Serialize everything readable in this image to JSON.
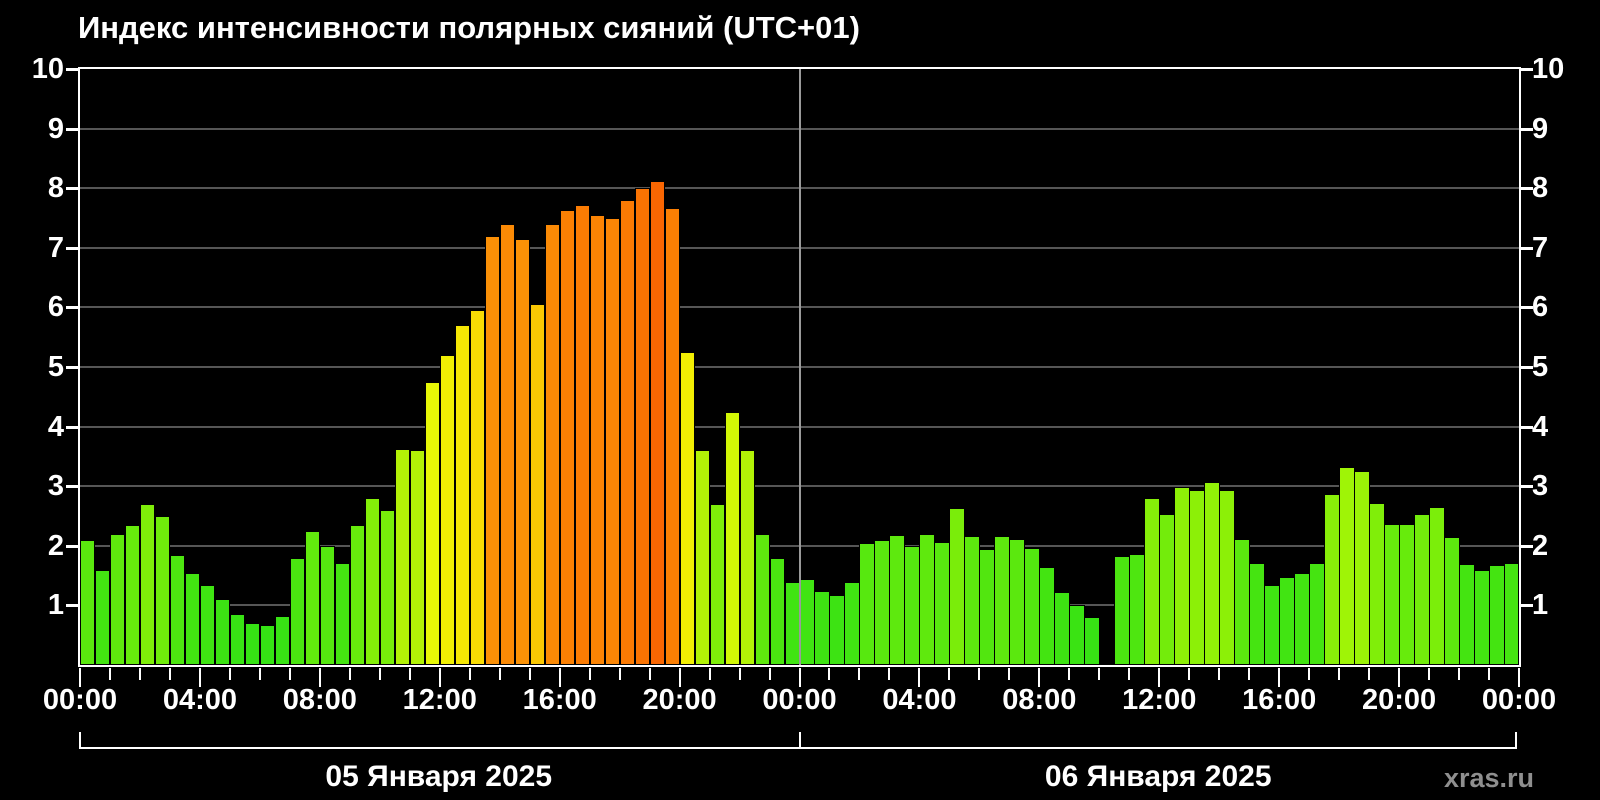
{
  "page": {
    "background": "#000000",
    "title": "Индекс интенсивности полярных сияний (UTC+01)",
    "watermark": "xras.ru"
  },
  "chart_data": {
    "type": "bar",
    "title": "Индекс интенсивности полярных сияний (UTC+01)",
    "xlabel": "",
    "ylabel": "",
    "ylim": [
      0,
      10
    ],
    "grid": "horizontal-gray, vertical divider at day boundary",
    "legend": "none",
    "slot_minutes": 30,
    "y_tick_labels": [
      "10",
      "9",
      "8",
      "7",
      "6",
      "5",
      "4",
      "3",
      "2",
      "1"
    ],
    "x_tick_labels": [
      "00:00",
      "04:00",
      "08:00",
      "12:00",
      "16:00",
      "20:00",
      "00:00",
      "04:00",
      "08:00",
      "12:00",
      "16:00",
      "20:00",
      "00:00"
    ],
    "x_minor_tick_every_hours": 1,
    "x_major_tick_every_hours": 4,
    "days": [
      {
        "label": "05 Января 2025"
      },
      {
        "label": "06 Января 2025"
      }
    ],
    "missing_slot_note": "no data bar for 06 Jan 10:00-10:30 (null)",
    "values": [
      2.1,
      1.6,
      2.2,
      2.35,
      2.7,
      2.5,
      1.85,
      1.55,
      1.35,
      1.1,
      0.85,
      0.7,
      0.67,
      0.83,
      1.8,
      2.25,
      2.0,
      1.72,
      2.35,
      2.8,
      2.6,
      3.62,
      3.6,
      4.75,
      5.2,
      5.7,
      5.95,
      7.2,
      7.4,
      7.15,
      6.06,
      7.4,
      7.64,
      7.72,
      7.55,
      7.5,
      7.8,
      8.0,
      8.12,
      7.66,
      5.25,
      3.6,
      2.7,
      4.25,
      3.6,
      2.2,
      1.8,
      1.4,
      1.45,
      1.25,
      1.17,
      1.4,
      2.05,
      2.1,
      2.18,
      2.0,
      2.2,
      2.06,
      2.63,
      2.16,
      1.94,
      2.17,
      2.12,
      1.96,
      1.65,
      1.23,
      1.0,
      0.8,
      null,
      1.83,
      1.87,
      2.81,
      2.53,
      2.98,
      2.94,
      3.07,
      2.94,
      2.12,
      1.71,
      1.35,
      1.47,
      1.55,
      1.71,
      2.87,
      3.33,
      3.25,
      2.71,
      2.36,
      2.36,
      2.53,
      2.65,
      2.15,
      1.69,
      1.6,
      1.67,
      1.72
    ],
    "colors": {
      "background": "#000000",
      "axis": "#ffffff",
      "grid": "#565656",
      "day_divider": "#9a9a9a",
      "text": "#ffffff",
      "bar_border": "#000000",
      "watermark": "#8f8f8f"
    },
    "color_scale": [
      [
        0.0,
        "#2CE216"
      ],
      [
        1.7,
        "#44E411"
      ],
      [
        2.0,
        "#55E70F"
      ],
      [
        2.4,
        "#69EB0C"
      ],
      [
        2.7,
        "#7FEE09"
      ],
      [
        3.0,
        "#8FF007"
      ],
      [
        3.35,
        "#A0F406"
      ],
      [
        3.65,
        "#B5F106"
      ],
      [
        4.3,
        "#D4F705"
      ],
      [
        4.75,
        "#E8F806"
      ],
      [
        5.25,
        "#F2EE03"
      ],
      [
        5.7,
        "#F6E704"
      ],
      [
        5.95,
        "#F8DC04"
      ],
      [
        6.1,
        "#FBC103"
      ],
      [
        6.7,
        "#FBA805"
      ],
      [
        7.2,
        "#FB9006"
      ],
      [
        7.45,
        "#FB8805"
      ],
      [
        7.7,
        "#FB7D03"
      ],
      [
        8.0,
        "#FA7302"
      ],
      [
        8.15,
        "#F96302"
      ],
      [
        10.0,
        "#F94F02"
      ]
    ]
  }
}
